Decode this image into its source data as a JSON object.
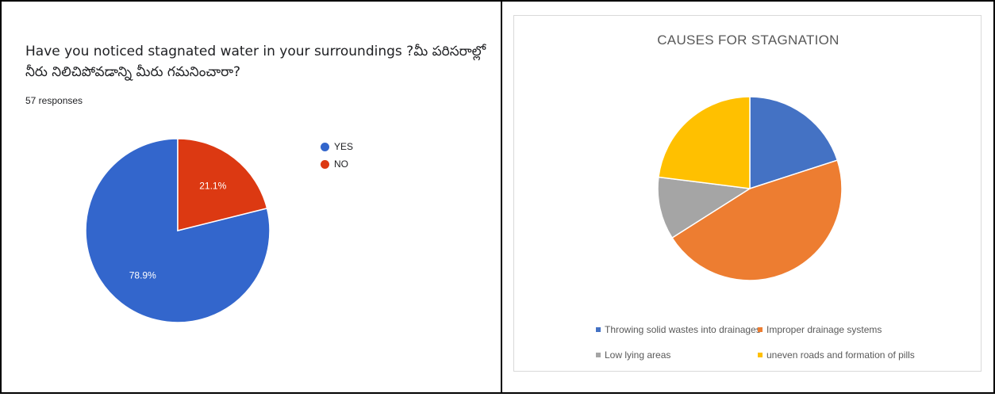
{
  "left": {
    "question": "Have you noticed stagnated water in your surroundings ?మీ పరిసరాల్లో నీరు నిలిచిపోవడాన్ని మీరు గమనించారా?",
    "responses": "57 responses"
  },
  "right": {
    "title": "CAUSES FOR STAGNATION"
  },
  "chart_data": [
    {
      "type": "pie",
      "title": "",
      "labels": [
        "YES",
        "NO"
      ],
      "values": [
        78.9,
        21.1
      ],
      "data_labels": [
        "78.9%",
        "21.1%"
      ],
      "colors": [
        "#3366cc",
        "#dc3912"
      ],
      "legend_position": "right"
    },
    {
      "type": "pie",
      "title": "CAUSES FOR STAGNATION",
      "labels": [
        "Throwing solid wastes into drainages",
        "Improper drainage systems",
        "Low lying areas",
        "uneven roads and formation of pills"
      ],
      "values": [
        20,
        46,
        11,
        23
      ],
      "colors": [
        "#4472c4",
        "#ed7d31",
        "#a5a5a5",
        "#ffc000"
      ],
      "legend_position": "bottom"
    }
  ]
}
